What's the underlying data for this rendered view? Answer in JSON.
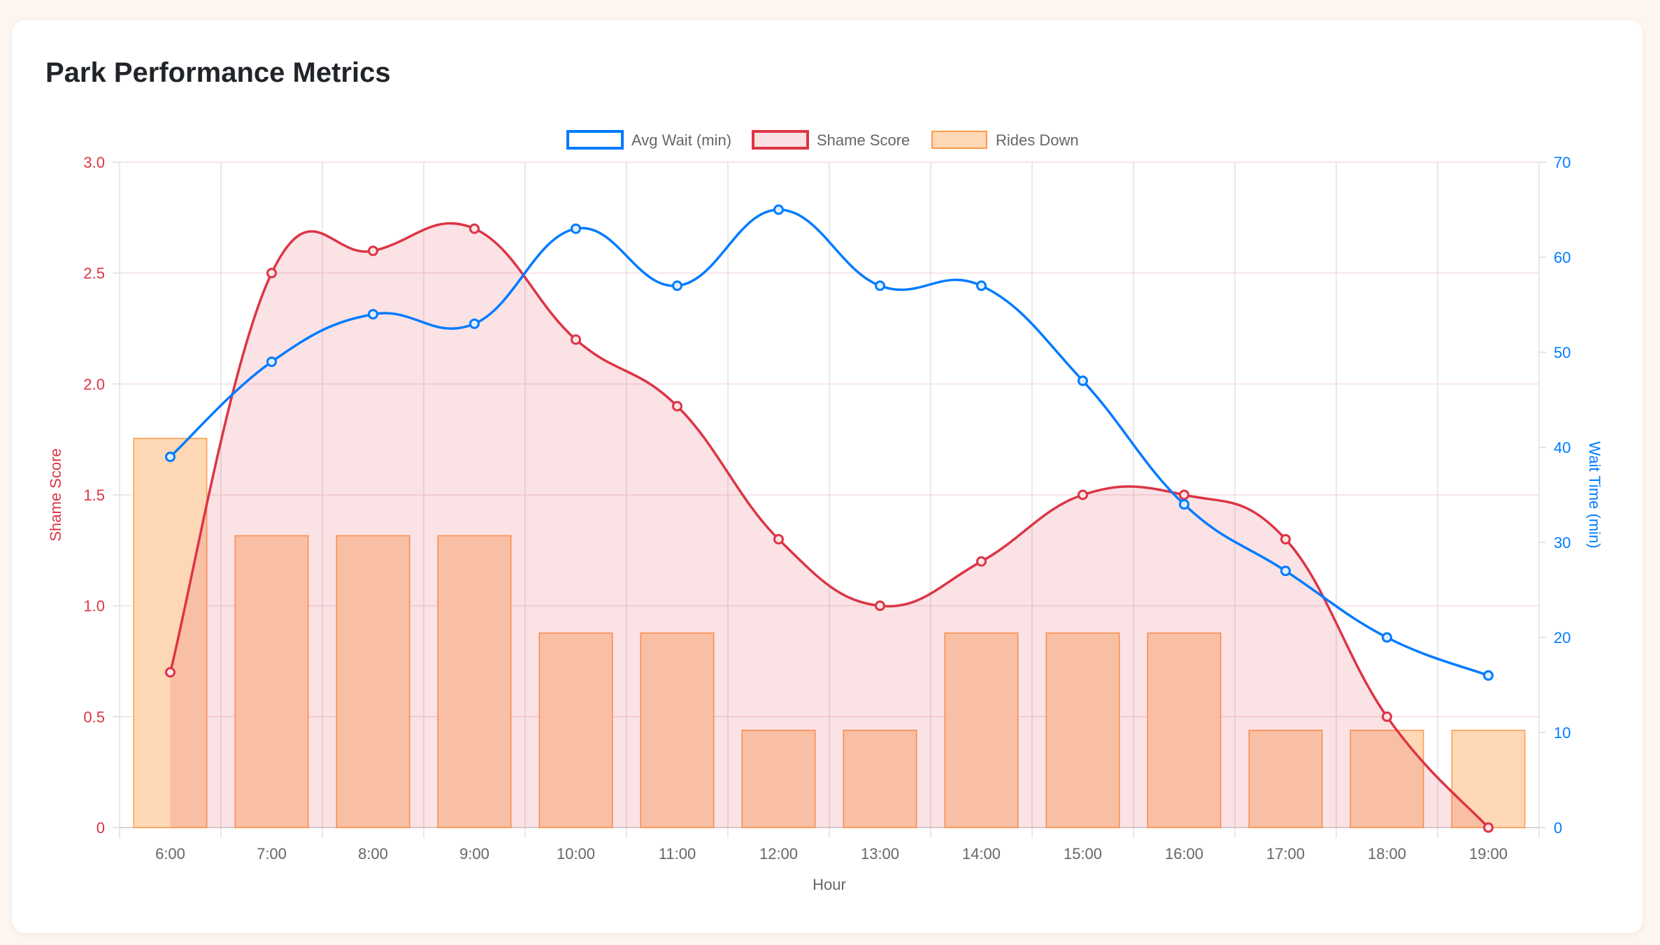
{
  "title": "Park Performance Metrics",
  "chart_data": {
    "type": "bar+line",
    "title": "",
    "xlabel": "Hour",
    "categories": [
      "6:00",
      "7:00",
      "8:00",
      "9:00",
      "10:00",
      "11:00",
      "12:00",
      "13:00",
      "14:00",
      "15:00",
      "16:00",
      "17:00",
      "18:00",
      "19:00"
    ],
    "y_left": {
      "label": "Shame Score",
      "range": [
        0,
        3.0
      ],
      "ticks": [
        "0",
        "0.5",
        "1.0",
        "1.5",
        "2.0",
        "2.5",
        "3.0"
      ],
      "color": "#dc3545"
    },
    "y_right": {
      "label": "Wait Time (min)",
      "range": [
        0,
        70
      ],
      "ticks": [
        "0",
        "10",
        "20",
        "30",
        "40",
        "50",
        "60",
        "70"
      ],
      "color": "#007bff"
    },
    "legend_position": "top",
    "grid": true,
    "series": [
      {
        "name": "Avg Wait (min)",
        "type": "line",
        "axis": "right",
        "color": "#007bff",
        "values": [
          39,
          49,
          54,
          53,
          63,
          57,
          65,
          57,
          57,
          47,
          34,
          27,
          20,
          16
        ]
      },
      {
        "name": "Shame Score",
        "type": "line-filled",
        "axis": "left",
        "color": "#dc3545",
        "fill": "#f8e0e3",
        "values": [
          0.7,
          2.5,
          2.6,
          2.7,
          2.2,
          1.9,
          1.3,
          1.0,
          1.2,
          1.5,
          1.5,
          1.3,
          0.5,
          0
        ]
      },
      {
        "name": "Rides Down",
        "type": "bar",
        "axis": "hidden",
        "color": "#fd9a4a",
        "fill": "#fed7b5",
        "values": [
          4,
          3,
          3,
          3,
          2,
          2,
          1,
          1,
          2,
          2,
          2,
          1,
          1,
          1
        ]
      }
    ]
  }
}
